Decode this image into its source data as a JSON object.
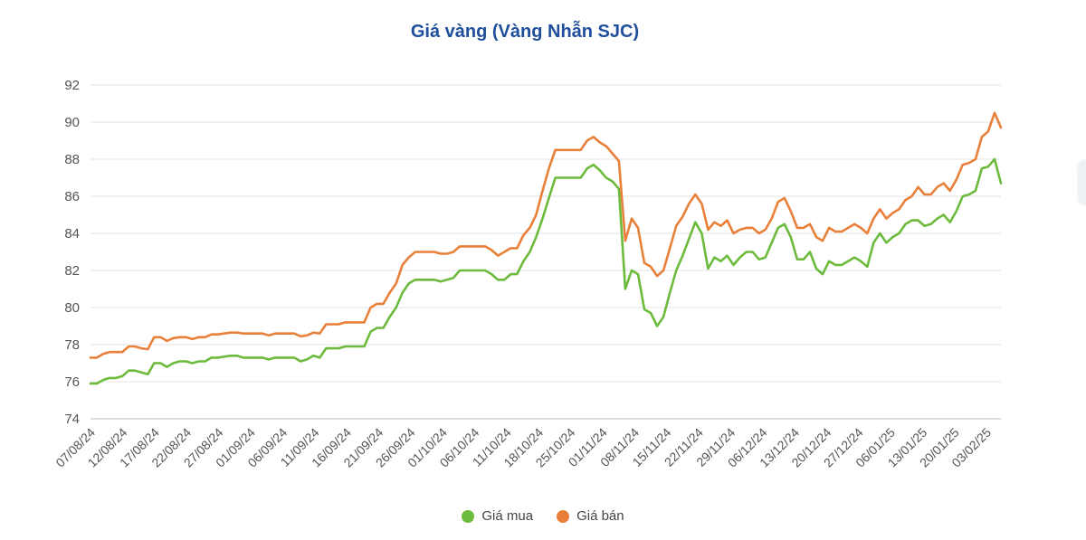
{
  "chart_data": {
    "type": "line",
    "title": "Giá vàng (Vàng Nhẫn SJC)",
    "xlabel": "",
    "ylabel": "",
    "ylim": [
      74,
      92
    ],
    "yticks": [
      "74",
      "76",
      "78",
      "80",
      "82",
      "84",
      "86",
      "88",
      "90",
      "92"
    ],
    "xtick_labels": [
      "07/08/24",
      "12/08/24",
      "17/08/24",
      "22/08/24",
      "27/08/24",
      "01/09/24",
      "06/09/24",
      "11/09/24",
      "16/09/24",
      "21/09/24",
      "26/09/24",
      "01/10/24",
      "06/10/24",
      "11/10/24",
      "18/10/24",
      "25/10/24",
      "01/11/24",
      "08/11/24",
      "15/11/24",
      "22/11/24",
      "29/11/24",
      "06/12/24",
      "13/12/24",
      "20/12/24",
      "27/12/24",
      "06/01/25",
      "13/01/25",
      "20/01/25",
      "03/02/25"
    ],
    "grid": true,
    "legend_position": "bottom",
    "series": [
      {
        "name": "Giá mua",
        "color": "#6cbb3c",
        "values": [
          75.9,
          75.9,
          76.1,
          76.2,
          76.2,
          76.3,
          76.6,
          76.6,
          76.5,
          76.4,
          77.0,
          77.0,
          76.8,
          77.0,
          77.1,
          77.1,
          77.0,
          77.1,
          77.1,
          77.3,
          77.3,
          77.35,
          77.4,
          77.4,
          77.3,
          77.3,
          77.3,
          77.3,
          77.2,
          77.3,
          77.3,
          77.3,
          77.3,
          77.1,
          77.2,
          77.4,
          77.3,
          77.8,
          77.8,
          77.8,
          77.9,
          77.9,
          77.9,
          77.9,
          78.7,
          78.9,
          78.9,
          79.5,
          80.0,
          80.8,
          81.3,
          81.5,
          81.5,
          81.5,
          81.5,
          81.4,
          81.5,
          81.6,
          82.0,
          82.0,
          82.0,
          82.0,
          82.0,
          81.8,
          81.5,
          81.5,
          81.8,
          81.8,
          82.5,
          83.0,
          83.8,
          84.8,
          85.9,
          87.0,
          87.0,
          87.0,
          87.0,
          87.0,
          87.5,
          87.7,
          87.4,
          87.0,
          86.8,
          86.4,
          81.0,
          82.0,
          81.8,
          79.9,
          79.7,
          79.0,
          79.5,
          80.8,
          82.0,
          82.8,
          83.7,
          84.6,
          84.0,
          82.1,
          82.7,
          82.5,
          82.8,
          82.3,
          82.7,
          83.0,
          83.0,
          82.6,
          82.7,
          83.5,
          84.3,
          84.5,
          83.8,
          82.6,
          82.6,
          83.0,
          82.1,
          81.8,
          82.5,
          82.3,
          82.3,
          82.5,
          82.7,
          82.5,
          82.2,
          83.5,
          84.0,
          83.5,
          83.8,
          84.0,
          84.5,
          84.7,
          84.7,
          84.4,
          84.5,
          84.8,
          85.0,
          84.6,
          85.2,
          86.0,
          86.1,
          86.3,
          87.5,
          87.6,
          88.0,
          86.7
        ]
      },
      {
        "name": "Giá bán",
        "color": "#e8803a",
        "values": [
          77.3,
          77.3,
          77.5,
          77.6,
          77.6,
          77.6,
          77.9,
          77.9,
          77.8,
          77.75,
          78.4,
          78.4,
          78.2,
          78.35,
          78.4,
          78.4,
          78.3,
          78.4,
          78.4,
          78.55,
          78.55,
          78.6,
          78.65,
          78.65,
          78.6,
          78.6,
          78.6,
          78.6,
          78.5,
          78.6,
          78.6,
          78.6,
          78.6,
          78.45,
          78.5,
          78.65,
          78.6,
          79.1,
          79.1,
          79.1,
          79.2,
          79.2,
          79.2,
          79.2,
          80.0,
          80.2,
          80.2,
          80.8,
          81.3,
          82.3,
          82.7,
          83.0,
          83.0,
          83.0,
          83.0,
          82.9,
          82.9,
          83.0,
          83.3,
          83.3,
          83.3,
          83.3,
          83.3,
          83.1,
          82.8,
          83.0,
          83.2,
          83.2,
          83.9,
          84.3,
          85.0,
          86.3,
          87.5,
          88.5,
          88.5,
          88.5,
          88.5,
          88.5,
          89.0,
          89.2,
          88.9,
          88.7,
          88.3,
          87.9,
          83.6,
          84.8,
          84.3,
          82.4,
          82.2,
          81.7,
          82.0,
          83.2,
          84.4,
          84.9,
          85.6,
          86.1,
          85.6,
          84.2,
          84.6,
          84.4,
          84.7,
          84.0,
          84.2,
          84.3,
          84.3,
          84.0,
          84.2,
          84.8,
          85.7,
          85.9,
          85.2,
          84.3,
          84.3,
          84.5,
          83.8,
          83.6,
          84.3,
          84.1,
          84.1,
          84.3,
          84.5,
          84.3,
          84.0,
          84.8,
          85.3,
          84.8,
          85.1,
          85.3,
          85.8,
          86.0,
          86.5,
          86.1,
          86.1,
          86.5,
          86.7,
          86.3,
          86.9,
          87.7,
          87.8,
          88.0,
          89.2,
          89.5,
          90.5,
          89.7
        ]
      }
    ]
  }
}
